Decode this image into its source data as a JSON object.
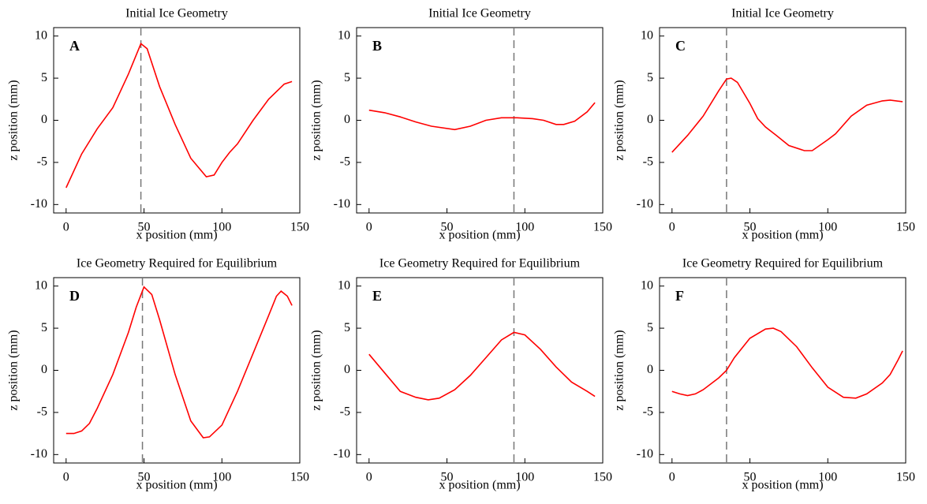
{
  "chart_data": [
    {
      "type": "line",
      "title": "Initial Ice Geometry",
      "panel_label": "A",
      "xlabel": "x position (mm)",
      "ylabel": "z position (mm)",
      "xlim": [
        -8,
        150
      ],
      "ylim": [
        -11,
        11
      ],
      "xticks": [
        0,
        50,
        100,
        150
      ],
      "yticks": [
        -10,
        -5,
        0,
        5,
        10
      ],
      "vline": 48,
      "color": "#ff0000",
      "x": [
        0,
        10,
        20,
        30,
        40,
        48,
        52,
        60,
        70,
        80,
        90,
        95,
        100,
        105,
        110,
        120,
        130,
        140,
        145
      ],
      "values": [
        -8,
        -4,
        -1,
        1.5,
        5.5,
        9.1,
        8.5,
        4,
        -0.5,
        -4.5,
        -6.7,
        -6.5,
        -5,
        -3.8,
        -2.8,
        0,
        2.5,
        4.3,
        4.6
      ]
    },
    {
      "type": "line",
      "title": "Initial Ice Geometry",
      "panel_label": "B",
      "xlabel": "x position (mm)",
      "ylabel": "z position (mm)",
      "xlim": [
        -8,
        150
      ],
      "ylim": [
        -11,
        11
      ],
      "xticks": [
        0,
        50,
        100,
        150
      ],
      "yticks": [
        -10,
        -5,
        0,
        5,
        10
      ],
      "vline": 93,
      "color": "#ff0000",
      "x": [
        0,
        10,
        20,
        30,
        40,
        55,
        65,
        75,
        85,
        95,
        105,
        112,
        120,
        125,
        132,
        140,
        145
      ],
      "values": [
        1.2,
        0.9,
        0.4,
        -0.2,
        -0.7,
        -1.1,
        -0.7,
        0,
        0.3,
        0.3,
        0.2,
        0,
        -0.5,
        -0.5,
        -0.1,
        1.0,
        2.1
      ]
    },
    {
      "type": "line",
      "title": "Initial Ice Geometry",
      "panel_label": "C",
      "xlabel": "x position (mm)",
      "ylabel": "z position (mm)",
      "xlim": [
        -8,
        150
      ],
      "ylim": [
        -11,
        11
      ],
      "xticks": [
        0,
        50,
        100,
        150
      ],
      "yticks": [
        -10,
        -5,
        0,
        5,
        10
      ],
      "vline": 35,
      "color": "#ff0000",
      "x": [
        0,
        10,
        20,
        30,
        35,
        38,
        42,
        50,
        55,
        60,
        67,
        75,
        85,
        90,
        100,
        105,
        115,
        125,
        135,
        140,
        148
      ],
      "values": [
        -3.8,
        -1.8,
        0.5,
        3.5,
        4.9,
        5,
        4.5,
        2,
        0.2,
        -0.8,
        -1.8,
        -3,
        -3.6,
        -3.6,
        -2.3,
        -1.6,
        0.5,
        1.8,
        2.3,
        2.4,
        2.2
      ]
    },
    {
      "type": "line",
      "title": "Ice Geometry Required for Equilibrium",
      "panel_label": "D",
      "xlabel": "x position (mm)",
      "ylabel": "z position (mm)",
      "xlim": [
        -8,
        150
      ],
      "ylim": [
        -11,
        11
      ],
      "xticks": [
        0,
        50,
        100,
        150
      ],
      "yticks": [
        -10,
        -5,
        0,
        5,
        10
      ],
      "vline": 49,
      "color": "#ff0000",
      "x": [
        0,
        5,
        10,
        15,
        20,
        30,
        40,
        45,
        50,
        55,
        60,
        70,
        80,
        88,
        92,
        100,
        110,
        120,
        130,
        135,
        138,
        142,
        145
      ],
      "values": [
        -7.5,
        -7.5,
        -7.2,
        -6.3,
        -4.5,
        -0.5,
        4.5,
        7.5,
        9.9,
        9,
        6,
        -0.5,
        -6,
        -8,
        -7.9,
        -6.5,
        -2.5,
        2,
        6.5,
        8.8,
        9.4,
        8.8,
        7.7
      ]
    },
    {
      "type": "line",
      "title": "Ice Geometry Required for Equilibrium",
      "panel_label": "E",
      "xlabel": "x position (mm)",
      "ylabel": "z position (mm)",
      "xlim": [
        -8,
        150
      ],
      "ylim": [
        -11,
        11
      ],
      "xticks": [
        0,
        50,
        100,
        150
      ],
      "yticks": [
        -10,
        -5,
        0,
        5,
        10
      ],
      "vline": 93,
      "color": "#ff0000",
      "x": [
        0,
        10,
        20,
        30,
        38,
        45,
        55,
        65,
        75,
        85,
        93,
        100,
        110,
        120,
        130,
        140,
        145
      ],
      "values": [
        1.9,
        -0.3,
        -2.5,
        -3.2,
        -3.5,
        -3.3,
        -2.3,
        -0.6,
        1.5,
        3.6,
        4.5,
        4.2,
        2.5,
        0.4,
        -1.4,
        -2.5,
        -3.1
      ]
    },
    {
      "type": "line",
      "title": "Ice Geometry Required for Equilibrium",
      "panel_label": "F",
      "xlabel": "x position (mm)",
      "ylabel": "z position (mm)",
      "xlim": [
        -8,
        150
      ],
      "ylim": [
        -11,
        11
      ],
      "xticks": [
        0,
        50,
        100,
        150
      ],
      "yticks": [
        -10,
        -5,
        0,
        5,
        10
      ],
      "vline": 35,
      "color": "#ff0000",
      "x": [
        0,
        5,
        10,
        15,
        20,
        30,
        35,
        40,
        50,
        60,
        65,
        70,
        80,
        90,
        100,
        110,
        118,
        125,
        135,
        140,
        145,
        148
      ],
      "values": [
        -2.5,
        -2.8,
        -3,
        -2.8,
        -2.3,
        -0.9,
        0,
        1.5,
        3.8,
        4.9,
        5,
        4.6,
        2.8,
        0.3,
        -2,
        -3.2,
        -3.3,
        -2.8,
        -1.5,
        -0.5,
        1.2,
        2.3
      ]
    }
  ]
}
